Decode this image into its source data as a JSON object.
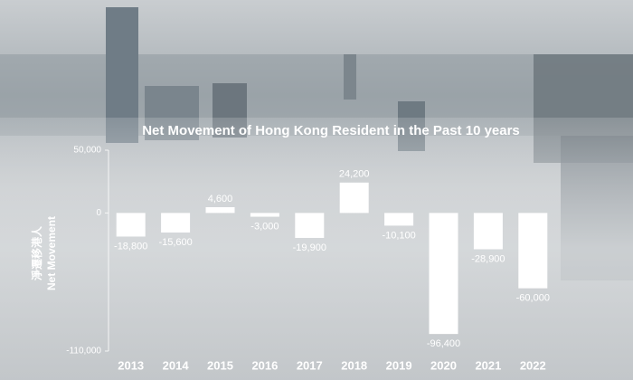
{
  "chart_data": {
    "type": "bar",
    "title": "Net Movement of Hong Kong Resident in the Past 10 years",
    "y_label": [
      "淨遷移港人",
      "Net Movement"
    ],
    "categories": [
      "2013",
      "2014",
      "2015",
      "2016",
      "2017",
      "2018",
      "2019",
      "2020",
      "2021",
      "2022"
    ],
    "values": [
      -18800,
      -15600,
      4600,
      -3000,
      -19900,
      24200,
      -10100,
      -96400,
      -28900,
      -60000
    ],
    "value_labels": [
      "-18,800",
      "-15,600",
      "4,600",
      "-3,000",
      "-19,900",
      "24,200",
      "-10,100",
      "-96,400",
      "-28,900",
      "-60,000"
    ],
    "color": "#ffffff",
    "ylim": [
      -110000,
      50000
    ],
    "yticks": [
      {
        "value": 50000,
        "label": "50,000"
      },
      0,
      {
        "value": -110000,
        "label": "-110,000"
      }
    ],
    "grid": false
  }
}
